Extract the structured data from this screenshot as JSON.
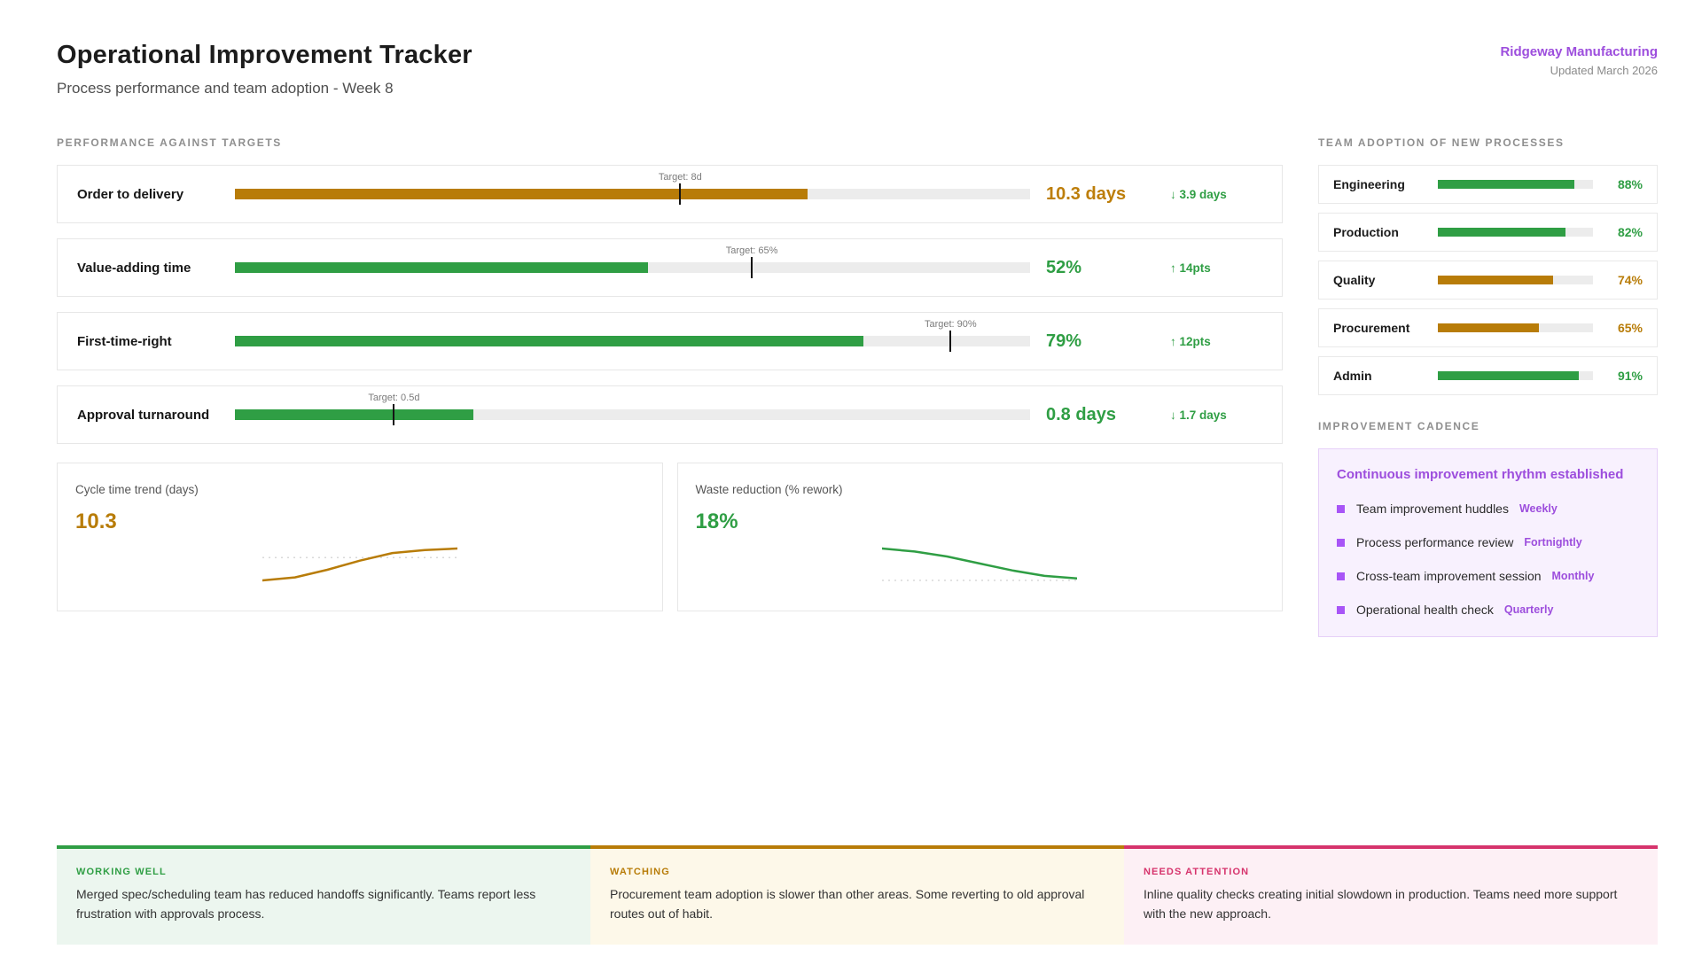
{
  "header": {
    "title": "Operational Improvement Tracker",
    "subtitle": "Process performance and team adoption - Week 8",
    "org": "Ridgeway Manufacturing",
    "updated": "Updated March 2026"
  },
  "colors": {
    "green": "#2f9e44",
    "orange": "#b87c08",
    "purple": "#9d4edd",
    "pink": "#d6336c",
    "track_gray": "#ececec",
    "marker_black": "#141414"
  },
  "performance": {
    "section_title": "PERFORMANCE AGAINST TARGETS",
    "metrics": [
      {
        "label": "Order to delivery",
        "target_label": "Target: 8d",
        "target_pct": 56,
        "fill_pct": 72,
        "bar_color": "#b87c08",
        "value": "10.3 days",
        "value_color": "#bd7e0a",
        "delta": "↓ 3.9 days"
      },
      {
        "label": "Value-adding time",
        "target_label": "Target: 65%",
        "target_pct": 65,
        "fill_pct": 52,
        "bar_color": "#2f9e44",
        "value": "52%",
        "value_color": "#2f9e44",
        "delta": "↑ 14pts"
      },
      {
        "label": "First-time-right",
        "target_label": "Target: 90%",
        "target_pct": 90,
        "fill_pct": 79,
        "bar_color": "#2f9e44",
        "value": "79%",
        "value_color": "#2f9e44",
        "delta": "↑ 12pts"
      },
      {
        "label": "Approval turnaround",
        "target_label": "Target: 0.5d",
        "target_pct": 20,
        "fill_pct": 30,
        "bar_color": "#2f9e44",
        "value": "0.8 days",
        "value_color": "#2f9e44",
        "delta": "↓ 1.7 days"
      }
    ]
  },
  "chart_data": [
    {
      "type": "line",
      "title": "Cycle time trend (days)",
      "current_value": "10.3",
      "values": [
        8.2,
        8.4,
        8.9,
        9.5,
        10.0,
        10.2,
        10.3
      ],
      "reference": 9.7,
      "color": "#b87c08",
      "legend": "dotted gray reference line, solid rising orange trend",
      "grid": "off"
    },
    {
      "type": "line",
      "title": "Waste reduction (% rework)",
      "current_value": "18%",
      "values": [
        24,
        23.4,
        22.4,
        21,
        19.6,
        18.5,
        18
      ],
      "reference": 17.6,
      "color": "#2f9e44",
      "legend": "dotted gray reference line, solid falling green trend",
      "grid": "off"
    }
  ],
  "adoption": {
    "section_title": "TEAM ADOPTION OF NEW PROCESSES",
    "teams": [
      {
        "label": "Engineering",
        "pct": 88,
        "pct_label": "88%",
        "color": "#2f9e44"
      },
      {
        "label": "Production",
        "pct": 82,
        "pct_label": "82%",
        "color": "#2f9e44"
      },
      {
        "label": "Quality",
        "pct": 74,
        "pct_label": "74%",
        "color": "#b87c08"
      },
      {
        "label": "Procurement",
        "pct": 65,
        "pct_label": "65%",
        "color": "#b87c08"
      },
      {
        "label": "Admin",
        "pct": 91,
        "pct_label": "91%",
        "color": "#2f9e44"
      }
    ]
  },
  "cadence": {
    "section_title": "IMPROVEMENT CADENCE",
    "card_title": "Continuous improvement rhythm established",
    "items": [
      {
        "name": "Team improvement huddles",
        "frequency": "Weekly"
      },
      {
        "name": "Process performance review",
        "frequency": "Fortnightly"
      },
      {
        "name": "Cross-team improvement session",
        "frequency": "Monthly"
      },
      {
        "name": "Operational health check",
        "frequency": "Quarterly"
      }
    ]
  },
  "callouts": [
    {
      "label": "WORKING WELL",
      "accent": "#2f9e44",
      "bg": "#ecf6ef",
      "text": "Merged spec/scheduling team has reduced handoffs significantly. Teams report less frustration with approvals process."
    },
    {
      "label": "WATCHING",
      "accent": "#b87c08",
      "bg": "#fdf8e9",
      "text": "Procurement team adoption is slower than other areas. Some reverting to old approval routes out of habit."
    },
    {
      "label": "NEEDS ATTENTION",
      "accent": "#d6336c",
      "bg": "#fdf0f5",
      "text": "Inline quality checks creating initial slowdown in production. Teams need more support with the new approach."
    }
  ]
}
